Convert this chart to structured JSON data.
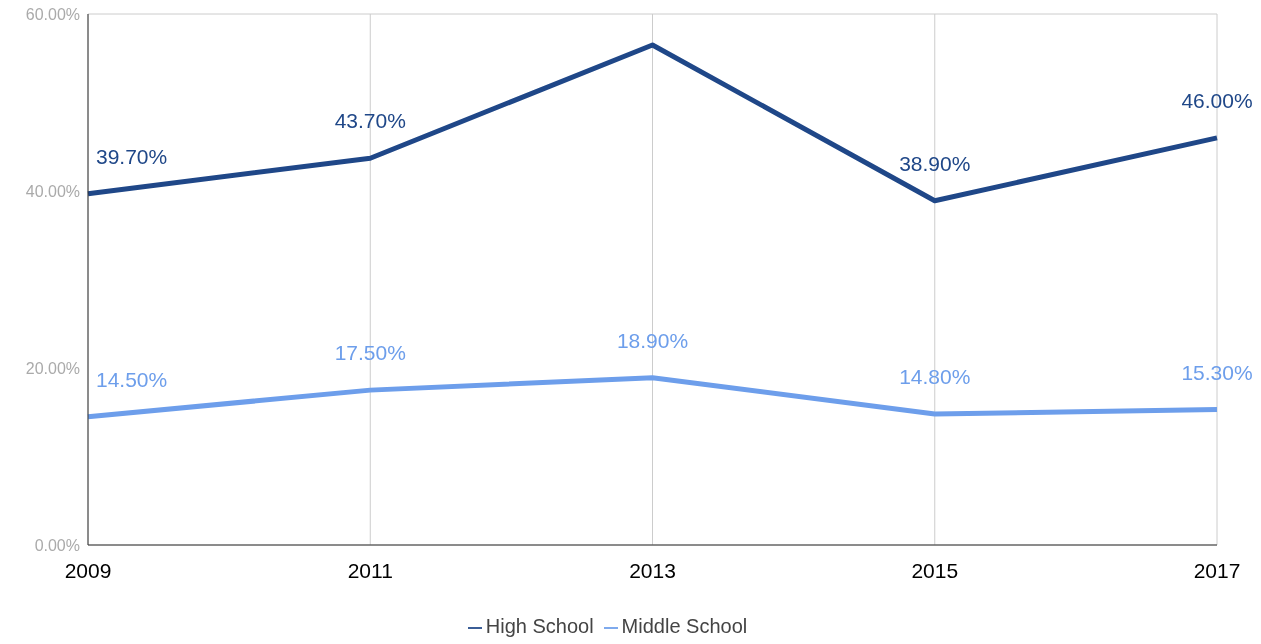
{
  "chart_data": {
    "type": "line",
    "categories": [
      "2009",
      "2011",
      "2013",
      "2015",
      "2017"
    ],
    "series": [
      {
        "name": "High School",
        "color": "#1f4788",
        "values": [
          39.7,
          43.7,
          56.5,
          38.9,
          46.0
        ],
        "value_labels": [
          "39.70%",
          "43.70%",
          null,
          "38.90%",
          "46.00%"
        ]
      },
      {
        "name": "Middle School",
        "color": "#6d9eeb",
        "values": [
          14.5,
          17.5,
          18.9,
          14.8,
          15.3
        ],
        "value_labels": [
          "14.50%",
          "17.50%",
          "18.90%",
          "14.80%",
          "15.30%"
        ]
      }
    ],
    "ylim": [
      0,
      60
    ],
    "yticks": [
      {
        "value": 0,
        "label": "0.00%"
      },
      {
        "value": 20,
        "label": "20.00%"
      },
      {
        "value": 40,
        "label": "40.00%"
      },
      {
        "value": 60,
        "label": "60.00%"
      }
    ],
    "grid": true,
    "legend": "bottom",
    "marker": "none",
    "line_style": "solid"
  }
}
